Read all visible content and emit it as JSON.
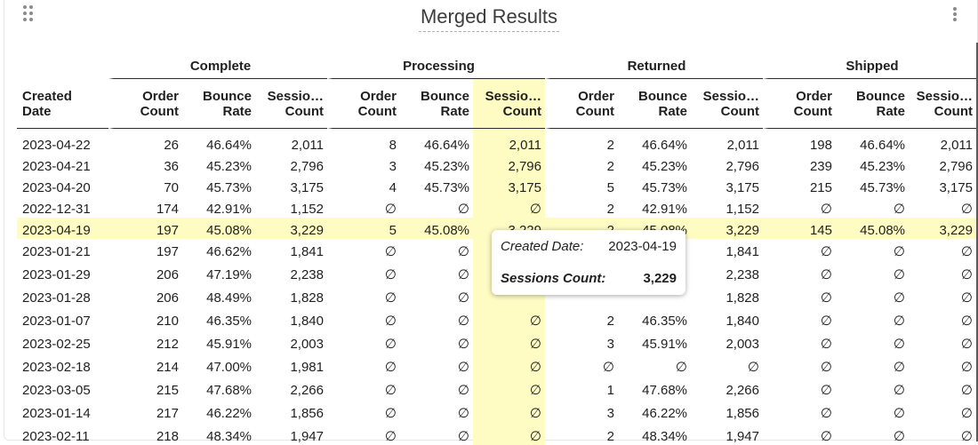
{
  "tile": {
    "title": "Merged Results",
    "null_symbol": "∅"
  },
  "table": {
    "first_column_header": [
      "Created",
      "Date"
    ],
    "groups": [
      "Complete",
      "Processing",
      "Returned",
      "Shipped"
    ],
    "subcolumns": [
      [
        "Order",
        "Count"
      ],
      [
        "Bounce",
        "Rate"
      ],
      [
        "Sessio…",
        "Count"
      ]
    ],
    "highlighted_column": "Processing · Sessions Count",
    "selected_row_date": "2023-04-19",
    "rows": [
      [
        "2023-04-22",
        "26",
        "46.64%",
        "2,011",
        "8",
        "46.64%",
        "2,011",
        "2",
        "46.64%",
        "2,011",
        "198",
        "46.64%",
        "2,011"
      ],
      [
        "2023-04-21",
        "36",
        "45.23%",
        "2,796",
        "3",
        "45.23%",
        "2,796",
        "2",
        "45.23%",
        "2,796",
        "239",
        "45.23%",
        "2,796"
      ],
      [
        "2023-04-20",
        "70",
        "45.73%",
        "3,175",
        "4",
        "45.73%",
        "3,175",
        "5",
        "45.73%",
        "3,175",
        "215",
        "45.73%",
        "3,175"
      ],
      [
        "2022-12-31",
        "174",
        "42.91%",
        "1,152",
        "∅",
        "∅",
        "∅",
        "2",
        "42.91%",
        "1,152",
        "∅",
        "∅",
        "∅"
      ],
      [
        "2023-04-19",
        "197",
        "45.08%",
        "3,229",
        "5",
        "45.08%",
        "3,229",
        "2",
        "45.08%",
        "3,229",
        "145",
        "45.08%",
        "3,229"
      ],
      [
        "2023-01-21",
        "197",
        "46.62%",
        "1,841",
        "∅",
        "∅",
        "",
        "",
        "",
        "1,841",
        "∅",
        "∅",
        "∅"
      ],
      [
        "2023-01-29",
        "206",
        "47.19%",
        "2,238",
        "∅",
        "∅",
        "",
        "",
        "",
        "2,238",
        "∅",
        "∅",
        "∅"
      ],
      [
        "2023-01-28",
        "206",
        "48.49%",
        "1,828",
        "∅",
        "∅",
        "",
        "",
        "",
        "1,828",
        "∅",
        "∅",
        "∅"
      ],
      [
        "2023-01-07",
        "210",
        "46.35%",
        "1,840",
        "∅",
        "∅",
        "∅",
        "2",
        "46.35%",
        "1,840",
        "∅",
        "∅",
        "∅"
      ],
      [
        "2023-02-25",
        "212",
        "45.91%",
        "2,003",
        "∅",
        "∅",
        "∅",
        "3",
        "45.91%",
        "2,003",
        "∅",
        "∅",
        "∅"
      ],
      [
        "2023-02-18",
        "214",
        "47.00%",
        "1,981",
        "∅",
        "∅",
        "∅",
        "∅",
        "∅",
        "∅",
        "∅",
        "∅",
        "∅"
      ],
      [
        "2023-03-05",
        "215",
        "47.68%",
        "2,266",
        "∅",
        "∅",
        "∅",
        "1",
        "47.68%",
        "2,266",
        "∅",
        "∅",
        "∅"
      ],
      [
        "2023-01-14",
        "217",
        "46.22%",
        "1,856",
        "∅",
        "∅",
        "∅",
        "3",
        "46.22%",
        "1,856",
        "∅",
        "∅",
        "∅"
      ],
      [
        "2023-02-11",
        "218",
        "48.34%",
        "1,947",
        "∅",
        "∅",
        "∅",
        "2",
        "48.34%",
        "1,947",
        "∅",
        "∅",
        "∅"
      ]
    ]
  },
  "tooltip": {
    "label1": "Created Date:",
    "value1": "2023-04-19",
    "label2": "Sessions Count:",
    "value2": "3,229"
  },
  "colors": {
    "highlight": "#fefcc3",
    "text": "#1f1f1f",
    "title": "#3c3c3c"
  },
  "icons": {
    "drag": "drag-handle-icon",
    "menu": "more-vertical-icon"
  }
}
